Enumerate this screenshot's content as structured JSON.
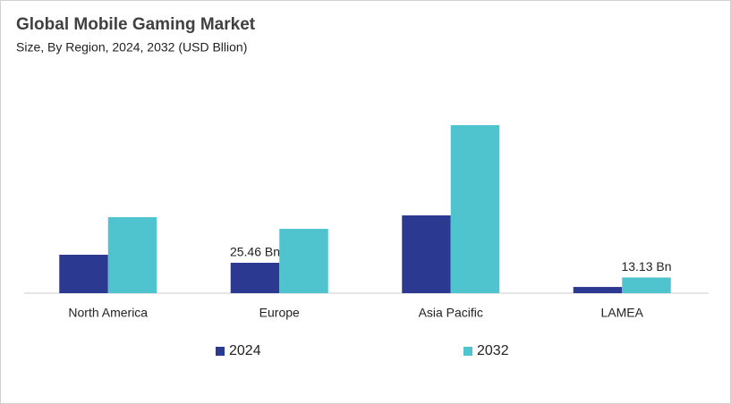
{
  "chart_data": {
    "type": "bar",
    "title": "Global Mobile Gaming Market",
    "subtitle": "Size, By Region, 2024, 2032 (USD Bllion)",
    "categories": [
      "North America",
      "Europe",
      "Asia Pacific",
      "LAMEA"
    ],
    "series": [
      {
        "name": "2024",
        "color": "#2b3990",
        "values": [
          32.2,
          25.46,
          65.2,
          5.2
        ],
        "value_labels": [
          null,
          "25.46 Bn",
          null,
          null
        ]
      },
      {
        "name": "2032",
        "color": "#4fc4cf",
        "values": [
          63.7,
          53.9,
          140.8,
          13.13
        ],
        "value_labels": [
          null,
          null,
          null,
          "13.13 Bn"
        ]
      }
    ]
  }
}
